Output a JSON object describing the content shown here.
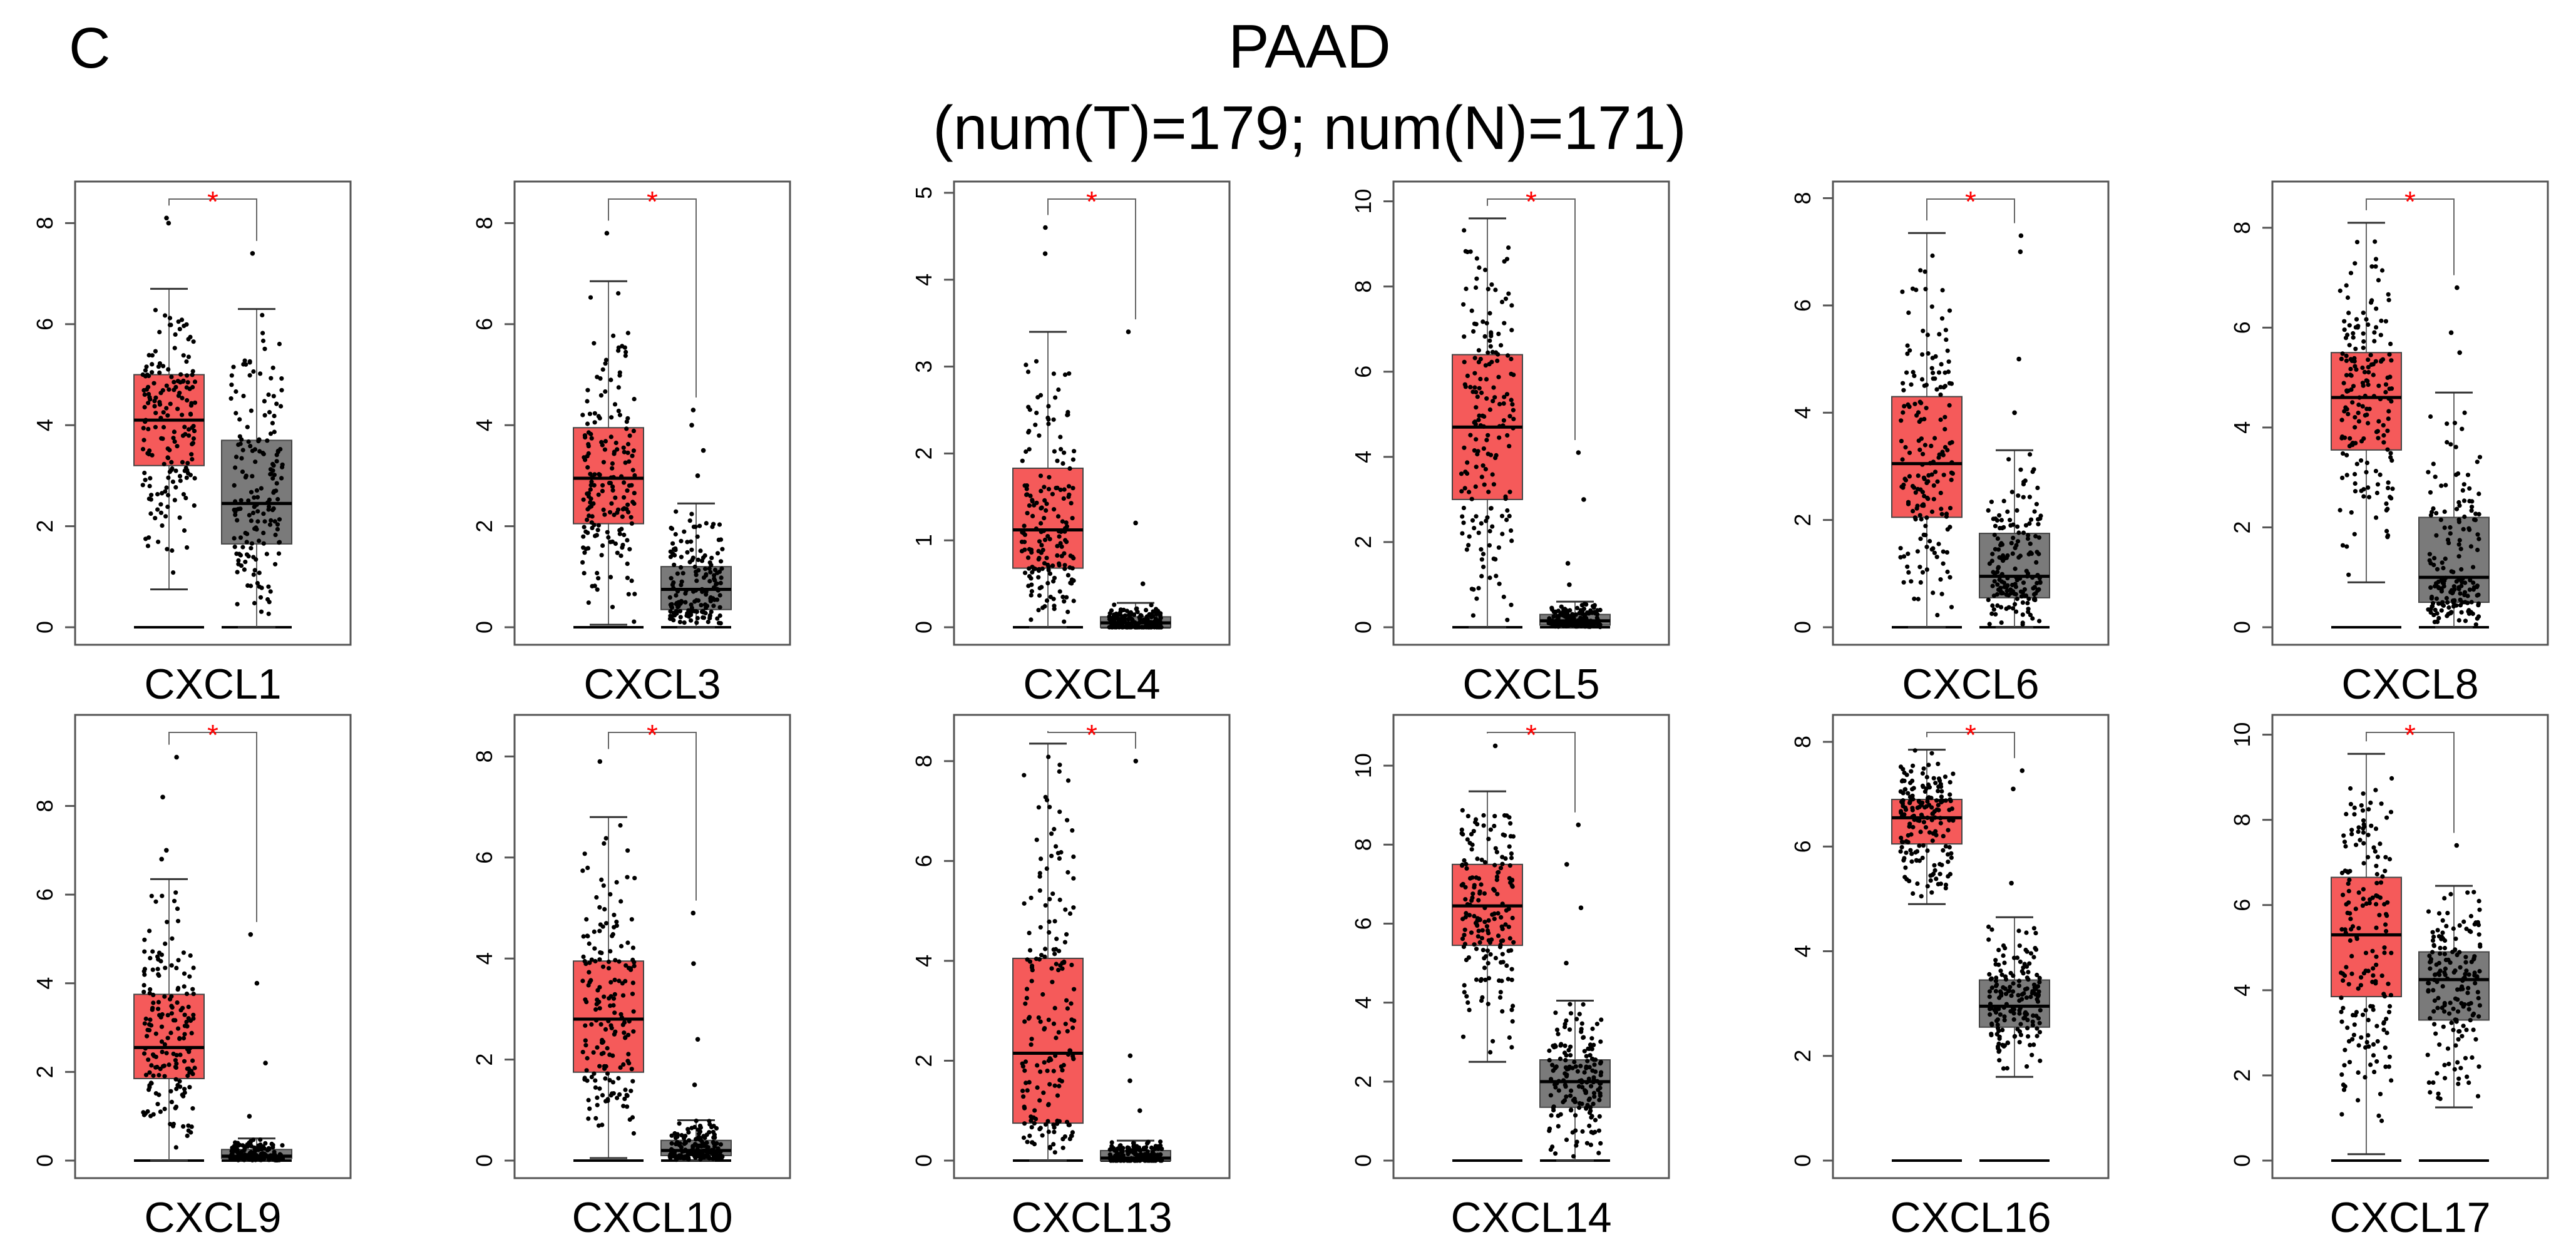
{
  "panel_label": "C",
  "title": "PAAD",
  "subtitle": "(num(T)=179; num(N)=171)",
  "colors": {
    "tumor": "#f55a5a",
    "normal": "#7a7a7a",
    "significance": "#ff0000",
    "points": "#000000"
  },
  "chart_data": [
    {
      "type": "box",
      "gene": "CXCL1",
      "xlabel": "CXCL1",
      "ylim": [
        0,
        8.6
      ],
      "yticks": [
        0,
        2,
        4,
        6,
        8
      ],
      "significance": "*",
      "series": [
        {
          "name": "Tumor",
          "n": 179,
          "min": 0.75,
          "q1": 3.2,
          "median": 4.1,
          "q3": 5.0,
          "max": 6.7,
          "outliers_high": [
            8.0,
            8.1
          ]
        },
        {
          "name": "Normal",
          "n": 171,
          "min": 0.0,
          "q1": 1.65,
          "median": 2.45,
          "q3": 3.7,
          "max": 6.3,
          "outliers_high": [
            7.4
          ]
        }
      ]
    },
    {
      "type": "box",
      "gene": "CXCL3",
      "xlabel": "CXCL3",
      "ylim": [
        0,
        8.6
      ],
      "yticks": [
        0,
        2,
        4,
        6,
        8
      ],
      "significance": "*",
      "series": [
        {
          "name": "Tumor",
          "n": 179,
          "min": 0.05,
          "q1": 2.05,
          "median": 2.95,
          "q3": 3.95,
          "max": 6.85,
          "outliers_high": [
            7.8
          ]
        },
        {
          "name": "Normal",
          "n": 171,
          "min": 0.0,
          "q1": 0.35,
          "median": 0.75,
          "q3": 1.2,
          "max": 2.45,
          "outliers_high": [
            3.0,
            3.5,
            4.0,
            4.3
          ]
        }
      ]
    },
    {
      "type": "box",
      "gene": "CXCL4",
      "xlabel": "CXCL4",
      "ylim": [
        0,
        5.0
      ],
      "yticks": [
        0,
        1,
        2,
        3,
        4,
        5
      ],
      "significance": "*",
      "series": [
        {
          "name": "Tumor",
          "n": 179,
          "min": 0.0,
          "q1": 0.68,
          "median": 1.12,
          "q3": 1.83,
          "max": 3.4,
          "outliers_high": [
            4.3,
            4.6
          ]
        },
        {
          "name": "Normal",
          "n": 171,
          "min": 0.0,
          "q1": 0.0,
          "median": 0.05,
          "q3": 0.12,
          "max": 0.28,
          "outliers_high": [
            0.5,
            1.2,
            3.4
          ]
        }
      ]
    },
    {
      "type": "box",
      "gene": "CXCL5",
      "xlabel": "CXCL5",
      "ylim": [
        0,
        10.2
      ],
      "yticks": [
        0,
        2,
        4,
        6,
        8,
        10
      ],
      "significance": "*",
      "series": [
        {
          "name": "Tumor",
          "n": 179,
          "min": 0.0,
          "q1": 3.0,
          "median": 4.7,
          "q3": 6.4,
          "max": 9.6,
          "outliers_high": []
        },
        {
          "name": "Normal",
          "n": 171,
          "min": 0.0,
          "q1": 0.05,
          "median": 0.15,
          "q3": 0.3,
          "max": 0.6,
          "outliers_high": [
            1.0,
            1.5,
            3.0,
            4.1
          ]
        }
      ]
    },
    {
      "type": "box",
      "gene": "CXCL6",
      "xlabel": "CXCL6",
      "ylim": [
        0,
        8.1
      ],
      "yticks": [
        0,
        2,
        4,
        6,
        8
      ],
      "significance": "*",
      "series": [
        {
          "name": "Tumor",
          "n": 179,
          "min": 0.0,
          "q1": 2.05,
          "median": 3.05,
          "q3": 4.3,
          "max": 7.35,
          "outliers_high": []
        },
        {
          "name": "Normal",
          "n": 171,
          "min": 0.0,
          "q1": 0.55,
          "median": 0.95,
          "q3": 1.75,
          "max": 3.3,
          "outliers_high": [
            4.0,
            5.0,
            7.0,
            7.3
          ]
        }
      ]
    },
    {
      "type": "box",
      "gene": "CXCL8",
      "xlabel": "CXCL8",
      "ylim": [
        0,
        8.7
      ],
      "yticks": [
        0,
        2,
        4,
        6,
        8
      ],
      "significance": "*",
      "series": [
        {
          "name": "Tumor",
          "n": 179,
          "min": 0.9,
          "q1": 3.55,
          "median": 4.6,
          "q3": 5.5,
          "max": 8.1,
          "outliers_high": []
        },
        {
          "name": "Normal",
          "n": 171,
          "min": 0.0,
          "q1": 0.5,
          "median": 1.0,
          "q3": 2.2,
          "max": 4.7,
          "outliers_high": [
            5.5,
            5.9,
            6.8
          ]
        }
      ]
    },
    {
      "type": "box",
      "gene": "CXCL9",
      "xlabel": "CXCL9",
      "ylim": [
        0,
        9.8
      ],
      "yticks": [
        0,
        2,
        4,
        6,
        8
      ],
      "significance": "*",
      "series": [
        {
          "name": "Tumor",
          "n": 179,
          "min": 0.0,
          "q1": 1.85,
          "median": 2.55,
          "q3": 3.75,
          "max": 6.35,
          "outliers_high": [
            6.8,
            7.0,
            8.2,
            9.1
          ]
        },
        {
          "name": "Normal",
          "n": 171,
          "min": 0.0,
          "q1": 0.05,
          "median": 0.1,
          "q3": 0.25,
          "max": 0.5,
          "outliers_high": [
            1.0,
            2.2,
            4.0,
            5.1
          ]
        }
      ]
    },
    {
      "type": "box",
      "gene": "CXCL10",
      "xlabel": "CXCL10",
      "ylim": [
        0,
        8.6
      ],
      "yticks": [
        0,
        2,
        4,
        6,
        8
      ],
      "significance": "*",
      "series": [
        {
          "name": "Tumor",
          "n": 179,
          "min": 0.05,
          "q1": 1.75,
          "median": 2.8,
          "q3": 3.95,
          "max": 6.8,
          "outliers_high": [
            7.9
          ]
        },
        {
          "name": "Normal",
          "n": 171,
          "min": 0.0,
          "q1": 0.1,
          "median": 0.2,
          "q3": 0.4,
          "max": 0.8,
          "outliers_high": [
            1.5,
            2.4,
            3.9,
            4.9
          ]
        }
      ]
    },
    {
      "type": "box",
      "gene": "CXCL13",
      "xlabel": "CXCL13",
      "ylim": [
        0,
        8.7
      ],
      "yticks": [
        0,
        2,
        4,
        6,
        8
      ],
      "significance": "*",
      "series": [
        {
          "name": "Tumor",
          "n": 179,
          "min": 0.0,
          "q1": 0.75,
          "median": 2.15,
          "q3": 4.05,
          "max": 8.35,
          "outliers_high": []
        },
        {
          "name": "Normal",
          "n": 171,
          "min": 0.0,
          "q1": 0.0,
          "median": 0.05,
          "q3": 0.2,
          "max": 0.4,
          "outliers_high": [
            1.0,
            1.6,
            2.1,
            8.0
          ]
        }
      ]
    },
    {
      "type": "box",
      "gene": "CXCL14",
      "xlabel": "CXCL14",
      "ylim": [
        0,
        11.0
      ],
      "yticks": [
        0,
        2,
        4,
        6,
        8,
        10
      ],
      "significance": "*",
      "series": [
        {
          "name": "Tumor",
          "n": 179,
          "min": 2.5,
          "q1": 5.45,
          "median": 6.45,
          "q3": 7.5,
          "max": 9.35,
          "outliers_high": [
            10.5
          ]
        },
        {
          "name": "Normal",
          "n": 171,
          "min": 0.0,
          "q1": 1.35,
          "median": 2.0,
          "q3": 2.55,
          "max": 4.05,
          "outliers_high": [
            5.0,
            6.4,
            7.5,
            8.5
          ]
        }
      ]
    },
    {
      "type": "box",
      "gene": "CXCL16",
      "xlabel": "CXCL16",
      "ylim": [
        0,
        8.3
      ],
      "yticks": [
        0,
        2,
        4,
        6,
        8
      ],
      "significance": "*",
      "series": [
        {
          "name": "Tumor",
          "n": 179,
          "min": 4.9,
          "q1": 6.05,
          "median": 6.55,
          "q3": 6.9,
          "max": 7.85,
          "outliers_high": []
        },
        {
          "name": "Normal",
          "n": 171,
          "min": 1.6,
          "q1": 2.55,
          "median": 2.95,
          "q3": 3.45,
          "max": 4.65,
          "outliers_high": [
            5.3,
            7.1,
            7.45
          ]
        }
      ]
    },
    {
      "type": "box",
      "gene": "CXCL17",
      "xlabel": "CXCL17",
      "ylim": [
        0,
        10.2
      ],
      "yticks": [
        0,
        2,
        4,
        6,
        8,
        10
      ],
      "significance": "*",
      "series": [
        {
          "name": "Tumor",
          "n": 179,
          "min": 0.15,
          "q1": 3.85,
          "median": 5.3,
          "q3": 6.65,
          "max": 9.55,
          "outliers_high": []
        },
        {
          "name": "Normal",
          "n": 171,
          "min": 1.25,
          "q1": 3.3,
          "median": 4.25,
          "q3": 4.9,
          "max": 6.45,
          "outliers_high": [
            7.4
          ]
        }
      ]
    }
  ]
}
